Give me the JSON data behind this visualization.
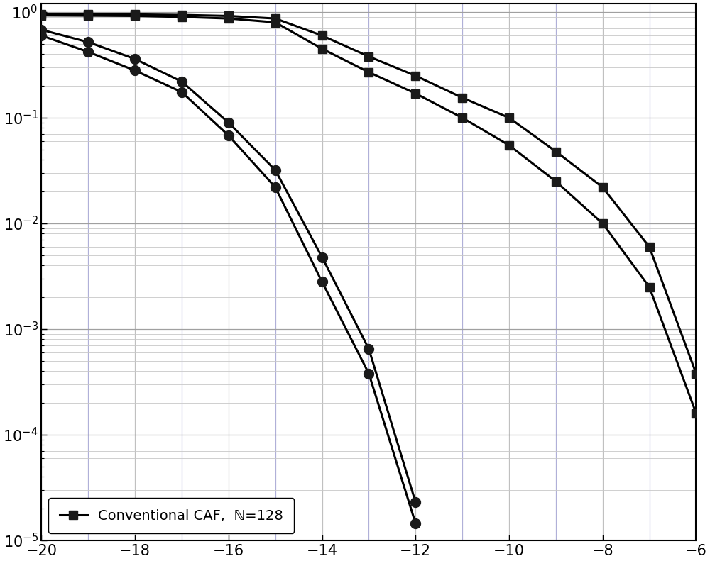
{
  "series": [
    {
      "label": "Conventional CAF,  ℕ=128",
      "marker": "s",
      "x": [
        -20,
        -19,
        -18,
        -17,
        -16,
        -15,
        -14,
        -13,
        -12,
        -11,
        -10,
        -9,
        -8,
        -7,
        -6
      ],
      "y": [
        0.93,
        0.925,
        0.92,
        0.9,
        0.87,
        0.8,
        0.45,
        0.27,
        0.17,
        0.1,
        0.055,
        0.025,
        0.01,
        0.0025,
        0.00016
      ]
    },
    {
      "label": "_nolegend_",
      "marker": "s",
      "x": [
        -20,
        -19,
        -18,
        -17,
        -16,
        -15,
        -14,
        -13,
        -12,
        -11,
        -10,
        -9,
        -8,
        -7,
        -6
      ],
      "y": [
        0.96,
        0.955,
        0.95,
        0.94,
        0.92,
        0.87,
        0.6,
        0.38,
        0.25,
        0.155,
        0.1,
        0.048,
        0.022,
        0.006,
        0.00038
      ]
    },
    {
      "label": "_nolegend_",
      "marker": "o",
      "x": [
        -20,
        -19,
        -18,
        -17,
        -16,
        -15,
        -14,
        -13,
        -12
      ],
      "y": [
        0.6,
        0.42,
        0.28,
        0.175,
        0.068,
        0.022,
        0.0028,
        0.00038,
        1.45e-05
      ]
    },
    {
      "label": "_nolegend_",
      "marker": "o",
      "x": [
        -20,
        -19,
        -18,
        -17,
        -16,
        -15,
        -14,
        -13,
        -12
      ],
      "y": [
        0.68,
        0.52,
        0.36,
        0.22,
        0.09,
        0.032,
        0.0048,
        0.00065,
        2.3e-05
      ]
    }
  ],
  "xlim": [
    -20,
    -6
  ],
  "ylim": [
    1e-05,
    1.2
  ],
  "xticks": [
    -20,
    -18,
    -16,
    -14,
    -12,
    -10,
    -8,
    -6
  ],
  "xlabel": "",
  "ylabel": "",
  "line_color": "#000000",
  "marker_color": "#1a1a1a",
  "marker_size": 9,
  "linewidth": 2.2,
  "background_color": "#ffffff",
  "grid_color_major_h": "#a0a0a0",
  "grid_color_minor_h": "#c8c8c8",
  "grid_color_major_v_odd": "#b0b0d8",
  "grid_color_major_v_even": "#c0c0c0",
  "legend_loc": "lower left",
  "legend_fontsize": 14,
  "tick_labelsize": 15
}
